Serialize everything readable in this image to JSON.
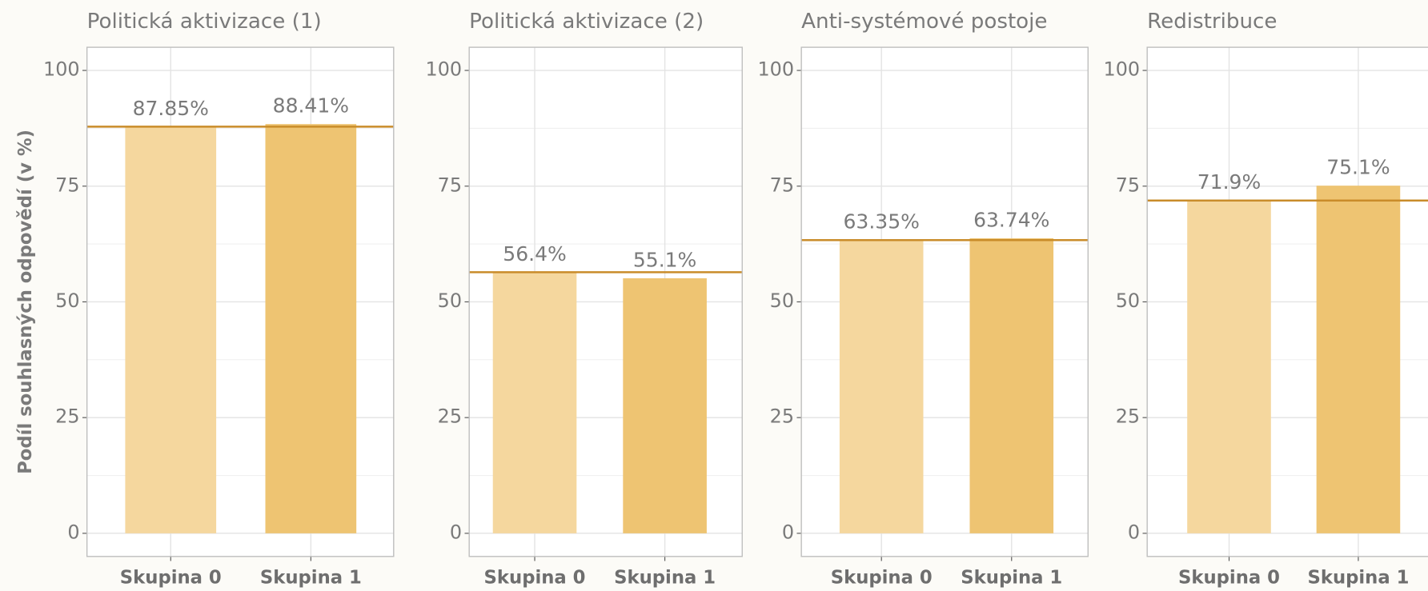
{
  "chart_data": [
    {
      "type": "bar",
      "title": "Politická aktivizace (1)",
      "ylabel": "Podíl souhlasných odpovědí (v %)",
      "categories": [
        "Skupina 0",
        "Skupina 1"
      ],
      "values": [
        87.85,
        88.41
      ],
      "value_labels": [
        "87.85%",
        "88.41%"
      ],
      "colors": [
        "#f5d79e",
        "#eec472"
      ],
      "reference_line_color": "#c98c2a",
      "ylim": [
        -5,
        105
      ],
      "yticks": [
        0,
        25,
        50,
        75,
        100
      ],
      "grid": true
    },
    {
      "type": "bar",
      "title": "Politická aktivizace (2)",
      "categories": [
        "Skupina 0",
        "Skupina 1"
      ],
      "values": [
        56.4,
        55.1
      ],
      "value_labels": [
        "56.4%",
        "55.1%"
      ],
      "colors": [
        "#f5d79e",
        "#eec472"
      ],
      "reference_line_color": "#c98c2a",
      "ylim": [
        -5,
        105
      ],
      "yticks": [
        0,
        25,
        50,
        75,
        100
      ],
      "grid": true
    },
    {
      "type": "bar",
      "title": "Anti-systémové postoje",
      "categories": [
        "Skupina 0",
        "Skupina 1"
      ],
      "values": [
        63.35,
        63.74
      ],
      "value_labels": [
        "63.35%",
        "63.74%"
      ],
      "colors": [
        "#f5d79e",
        "#eec472"
      ],
      "reference_line_color": "#c98c2a",
      "ylim": [
        -5,
        105
      ],
      "yticks": [
        0,
        25,
        50,
        75,
        100
      ],
      "grid": true
    },
    {
      "type": "bar",
      "title": "Redistribuce",
      "categories": [
        "Skupina 0",
        "Skupina 1"
      ],
      "values": [
        71.9,
        75.1
      ],
      "value_labels": [
        "71.9%",
        "75.1%"
      ],
      "colors": [
        "#f5d79e",
        "#eec472"
      ],
      "reference_line_color": "#c98c2a",
      "ylim": [
        -5,
        105
      ],
      "yticks": [
        0,
        25,
        50,
        75,
        100
      ],
      "grid": true
    }
  ]
}
